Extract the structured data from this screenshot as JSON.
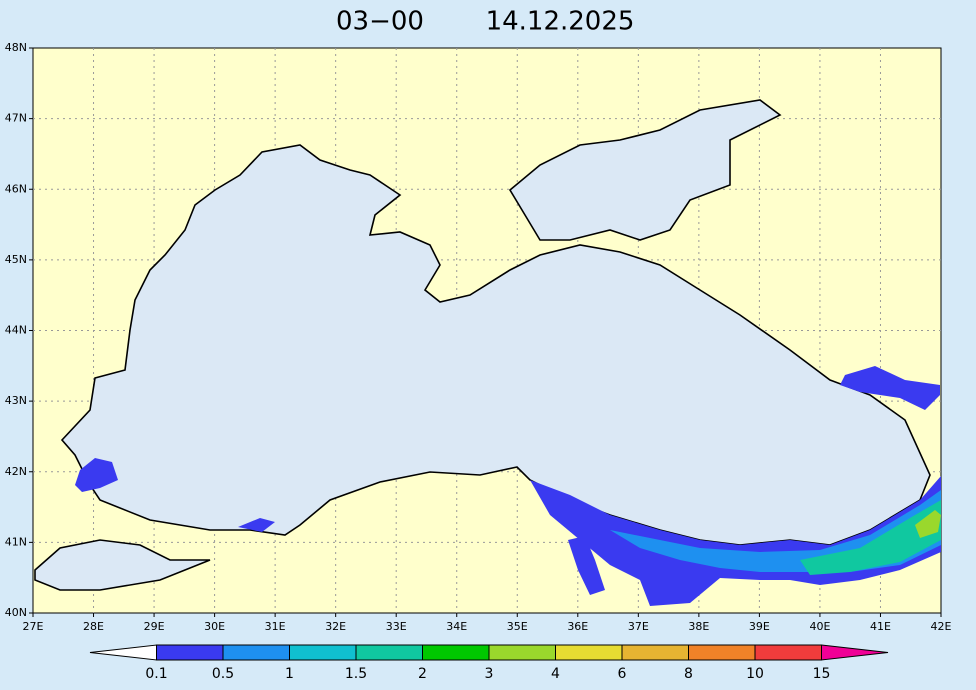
{
  "title": {
    "time": "03−00",
    "date": "14.12.2025"
  },
  "map": {
    "lon_labels": [
      "27E",
      "28E",
      "29E",
      "30E",
      "31E",
      "32E",
      "33E",
      "34E",
      "35E",
      "36E",
      "37E",
      "38E",
      "39E",
      "40E",
      "41E",
      "42E"
    ],
    "lat_labels": [
      "40N",
      "41N",
      "42N",
      "43N",
      "44N",
      "45N",
      "46N",
      "47N",
      "48N"
    ]
  },
  "colorbar": {
    "labels": [
      "0.1",
      "0.5",
      "1",
      "1.5",
      "2",
      "3",
      "4",
      "6",
      "8",
      "10",
      "15"
    ],
    "colors": [
      "#ffffff",
      "#3a3af0",
      "#1e90f0",
      "#10c0d0",
      "#10c8a0",
      "#00c800",
      "#9ad82c",
      "#e6dc32",
      "#e6b432",
      "#f08228",
      "#f03c3c",
      "#f00096"
    ]
  }
}
